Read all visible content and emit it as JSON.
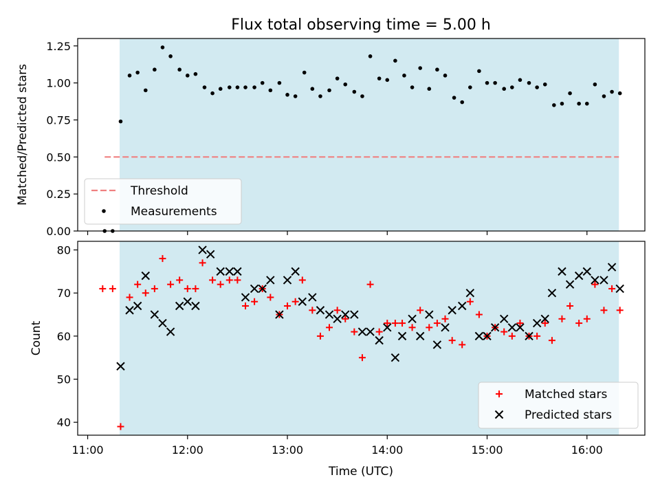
{
  "figure": {
    "title": "Flux total observing time = 5.00 h",
    "xlabel": "Time (UTC)",
    "shade_color": "#add8e6",
    "x_ticks": [
      "11:00",
      "12:00",
      "13:00",
      "14:00",
      "15:00",
      "16:00"
    ]
  },
  "chart_data": [
    {
      "type": "scatter",
      "ylabel": "Matched/Predicted stars",
      "ylim": [
        0,
        1.3
      ],
      "y_ticks": [
        "0.00",
        "0.25",
        "0.50",
        "0.75",
        "1.00",
        "1.25"
      ],
      "x_range_hours": [
        10.9,
        16.58
      ],
      "shaded_span_hours": [
        11.32,
        16.32
      ],
      "legend": {
        "placement": "lower-left",
        "entries": [
          "Threshold",
          "Measurements"
        ]
      },
      "threshold": {
        "name": "Threshold",
        "value": 0.5,
        "x_start": 11.17,
        "x_end": 16.32,
        "color": "#f08080",
        "style": "dashed"
      },
      "series": [
        {
          "name": "Measurements",
          "color": "#000000",
          "marker": "dot",
          "x": [
            11.17,
            11.25,
            11.33,
            11.42,
            11.5,
            11.58,
            11.67,
            11.75,
            11.83,
            11.92,
            12.0,
            12.08,
            12.17,
            12.25,
            12.33,
            12.42,
            12.5,
            12.58,
            12.67,
            12.75,
            12.83,
            12.92,
            13.0,
            13.08,
            13.17,
            13.25,
            13.33,
            13.42,
            13.5,
            13.58,
            13.67,
            13.75,
            13.83,
            13.92,
            14.0,
            14.08,
            14.17,
            14.25,
            14.33,
            14.42,
            14.5,
            14.58,
            14.67,
            14.75,
            14.83,
            14.92,
            15.0,
            15.08,
            15.17,
            15.25,
            15.33,
            15.42,
            15.5,
            15.58,
            15.67,
            15.75,
            15.83,
            15.92,
            16.0,
            16.08,
            16.17,
            16.25,
            16.33
          ],
          "y": [
            0.0,
            0.0,
            0.74,
            1.05,
            1.07,
            0.95,
            1.09,
            1.24,
            1.18,
            1.09,
            1.05,
            1.06,
            0.97,
            0.93,
            0.96,
            0.97,
            0.97,
            0.97,
            0.97,
            1.0,
            0.95,
            1.0,
            0.92,
            0.91,
            1.07,
            0.96,
            0.91,
            0.95,
            1.03,
            0.99,
            0.94,
            0.91,
            1.18,
            1.03,
            1.02,
            1.15,
            1.05,
            0.97,
            1.1,
            0.96,
            1.09,
            1.05,
            0.9,
            0.87,
            0.97,
            1.08,
            1.0,
            1.0,
            0.96,
            0.97,
            1.02,
            1.0,
            0.97,
            0.99,
            0.85,
            0.86,
            0.93,
            0.86,
            0.86,
            0.99,
            0.91,
            0.94,
            0.93
          ]
        }
      ]
    },
    {
      "type": "scatter",
      "ylabel": "Count",
      "ylim": [
        37,
        82
      ],
      "y_ticks": [
        "40",
        "50",
        "60",
        "70",
        "80"
      ],
      "x_range_hours": [
        10.9,
        16.58
      ],
      "shaded_span_hours": [
        11.32,
        16.32
      ],
      "legend": {
        "placement": "lower-right",
        "entries": [
          "Matched stars",
          "Predicted stars"
        ]
      },
      "series": [
        {
          "name": "Matched stars",
          "color": "#ff0000",
          "marker": "plus",
          "x": [
            11.15,
            11.25,
            11.33,
            11.42,
            11.5,
            11.58,
            11.67,
            11.75,
            11.83,
            11.92,
            12.0,
            12.08,
            12.15,
            12.25,
            12.33,
            12.42,
            12.5,
            12.58,
            12.67,
            12.75,
            12.83,
            12.92,
            13.0,
            13.08,
            13.15,
            13.25,
            13.33,
            13.42,
            13.5,
            13.58,
            13.67,
            13.75,
            13.83,
            13.92,
            14.0,
            14.08,
            14.15,
            14.25,
            14.33,
            14.42,
            14.5,
            14.58,
            14.65,
            14.75,
            14.83,
            14.92,
            15.0,
            15.08,
            15.17,
            15.25,
            15.33,
            15.42,
            15.5,
            15.58,
            15.65,
            15.75,
            15.83,
            15.92,
            16.0,
            16.08,
            16.17,
            16.25,
            16.33
          ],
          "y": [
            71,
            71,
            39,
            69,
            72,
            70,
            71,
            78,
            72,
            73,
            71,
            71,
            77,
            73,
            72,
            73,
            73,
            67,
            68,
            71,
            69,
            65,
            67,
            68,
            73,
            66,
            60,
            62,
            66,
            64,
            61,
            55,
            72,
            61,
            63,
            63,
            63,
            62,
            66,
            62,
            63,
            64,
            59,
            58,
            68,
            65,
            60,
            62,
            61,
            60,
            63,
            60,
            60,
            63,
            59,
            64,
            67,
            63,
            64,
            72,
            66,
            71,
            66
          ]
        },
        {
          "name": "Predicted stars",
          "color": "#000000",
          "marker": "cross",
          "x": [
            11.33,
            11.42,
            11.5,
            11.58,
            11.67,
            11.75,
            11.83,
            11.92,
            12.0,
            12.08,
            12.15,
            12.23,
            12.33,
            12.42,
            12.5,
            12.58,
            12.67,
            12.75,
            12.83,
            12.92,
            13.0,
            13.08,
            13.15,
            13.25,
            13.33,
            13.42,
            13.5,
            13.58,
            13.67,
            13.75,
            13.83,
            13.92,
            14.0,
            14.08,
            14.15,
            14.25,
            14.33,
            14.42,
            14.5,
            14.58,
            14.65,
            14.75,
            14.83,
            14.92,
            15.0,
            15.08,
            15.17,
            15.25,
            15.33,
            15.42,
            15.5,
            15.58,
            15.65,
            15.75,
            15.83,
            15.92,
            16.0,
            16.08,
            16.17,
            16.25,
            16.33
          ],
          "y": [
            53,
            66,
            67,
            74,
            65,
            63,
            61,
            67,
            68,
            67,
            80,
            79,
            75,
            75,
            75,
            69,
            71,
            71,
            73,
            65,
            73,
            75,
            68,
            69,
            66,
            65,
            64,
            65,
            65,
            61,
            61,
            59,
            62,
            55,
            60,
            64,
            60,
            65,
            58,
            62,
            66,
            67,
            70,
            60,
            60,
            62,
            64,
            62,
            62,
            60,
            63,
            64,
            70,
            75,
            72,
            74,
            75,
            73,
            73,
            76,
            71
          ]
        }
      ]
    }
  ]
}
